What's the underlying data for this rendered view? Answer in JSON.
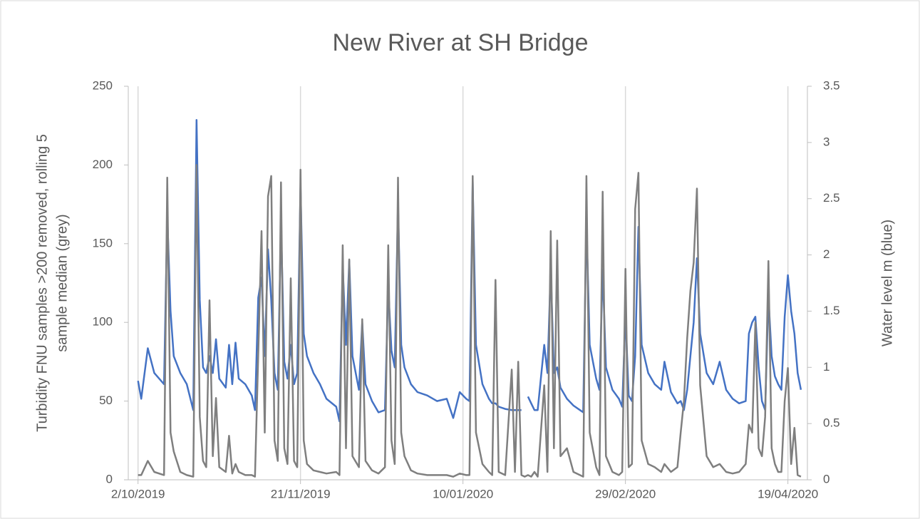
{
  "chart_data": {
    "type": "line",
    "title": "New River at SH Bridge",
    "ylabel": [
      "Turbidity FNU samples >200 removed, rolling 5",
      "sample median  (grey)"
    ],
    "y2label": "Water level m (blue)",
    "xlim": [
      "2019-09-29",
      "2020-04-25"
    ],
    "xticks": [
      {
        "value": "2019-10-02",
        "label": "2/10/2019"
      },
      {
        "value": "2019-11-21",
        "label": "21/11/2019"
      },
      {
        "value": "2020-01-10",
        "label": "10/01/2020"
      },
      {
        "value": "2020-02-29",
        "label": "29/02/2020"
      },
      {
        "value": "2020-04-19",
        "label": "19/04/2020"
      }
    ],
    "ylim": [
      0,
      250
    ],
    "yticks": [
      0,
      50,
      100,
      150,
      200,
      250
    ],
    "y2lim": [
      0,
      3.5
    ],
    "y2ticks": [
      0,
      0.5,
      1,
      1.5,
      2,
      2.5,
      3,
      3.5
    ],
    "grid": "x",
    "x": [
      "2019-10-02",
      "2019-10-03",
      "2019-10-05",
      "2019-10-07",
      "2019-10-10",
      "2019-10-11",
      "2019-10-12",
      "2019-10-13",
      "2019-10-15",
      "2019-10-17",
      "2019-10-19",
      "2019-10-20",
      "2019-10-21",
      "2019-10-22",
      "2019-10-23",
      "2019-10-24",
      "2019-10-25",
      "2019-10-26",
      "2019-10-27",
      "2019-10-29",
      "2019-10-30",
      "2019-10-31",
      "2019-11-01",
      "2019-11-02",
      "2019-11-04",
      "2019-11-06",
      "2019-11-07",
      "2019-11-08",
      "2019-11-09",
      "2019-11-10",
      "2019-11-11",
      "2019-11-12",
      "2019-11-13",
      "2019-11-14",
      "2019-11-15",
      "2019-11-16",
      "2019-11-17",
      "2019-11-18",
      "2019-11-19",
      "2019-11-20",
      "2019-11-21",
      "2019-11-22",
      "2019-11-23",
      "2019-11-25",
      "2019-11-27",
      "2019-11-29",
      "2019-12-02",
      "2019-12-03",
      "2019-12-04",
      "2019-12-05",
      "2019-12-06",
      "2019-12-07",
      "2019-12-09",
      "2019-12-10",
      "2019-12-11",
      "2019-12-13",
      "2019-12-15",
      "2019-12-17",
      "2019-12-18",
      "2019-12-19",
      "2019-12-20",
      "2019-12-21",
      "2019-12-22",
      "2019-12-23",
      "2019-12-25",
      "2019-12-27",
      "2019-12-30",
      "2020-01-02",
      "2020-01-05",
      "2020-01-07",
      "2020-01-09",
      "2020-01-11",
      "2020-01-12",
      "2020-01-13",
      "2020-01-14",
      "2020-01-16",
      "2020-01-18",
      "2020-01-19",
      "2020-01-20",
      "2020-01-21",
      "2020-01-23",
      "2020-01-25",
      "2020-01-26",
      "2020-01-27",
      "2020-01-28",
      "2020-01-29",
      "2020-01-30",
      "2020-01-31",
      "2020-02-01",
      "2020-02-02",
      "2020-02-04",
      "2020-02-05",
      "2020-02-06",
      "2020-02-07",
      "2020-02-08",
      "2020-02-09",
      "2020-02-11",
      "2020-02-13",
      "2020-02-15",
      "2020-02-16",
      "2020-02-17",
      "2020-02-18",
      "2020-02-20",
      "2020-02-21",
      "2020-02-22",
      "2020-02-23",
      "2020-02-25",
      "2020-02-27",
      "2020-02-28",
      "2020-02-29",
      "2020-03-01",
      "2020-03-02",
      "2020-03-03",
      "2020-03-04",
      "2020-03-05",
      "2020-03-07",
      "2020-03-09",
      "2020-03-11",
      "2020-03-12",
      "2020-03-14",
      "2020-03-16",
      "2020-03-17",
      "2020-03-18",
      "2020-03-19",
      "2020-03-20",
      "2020-03-21",
      "2020-03-22",
      "2020-03-23",
      "2020-03-25",
      "2020-03-27",
      "2020-03-29",
      "2020-03-31",
      "2020-04-02",
      "2020-04-04",
      "2020-04-06",
      "2020-04-07",
      "2020-04-08",
      "2020-04-09",
      "2020-04-10",
      "2020-04-11",
      "2020-04-12",
      "2020-04-13",
      "2020-04-14",
      "2020-04-15",
      "2020-04-16",
      "2020-04-17",
      "2020-04-18",
      "2020-04-19",
      "2020-04-20",
      "2020-04-21",
      "2020-04-22",
      "2020-04-23"
    ],
    "series": [
      {
        "name": "Water level m (blue)",
        "color": "#4472c4",
        "axis": "y2",
        "values": [
          0.88,
          0.72,
          1.17,
          0.95,
          0.85,
          2.35,
          1.5,
          1.1,
          0.95,
          0.85,
          0.62,
          3.2,
          1.6,
          1.0,
          0.95,
          1.1,
          0.95,
          1.25,
          0.9,
          0.82,
          1.2,
          0.85,
          1.22,
          0.9,
          0.85,
          0.75,
          0.62,
          1.62,
          1.8,
          1.1,
          2.05,
          1.6,
          0.95,
          0.8,
          2.3,
          1.05,
          0.9,
          1.2,
          0.85,
          0.95,
          2.6,
          1.3,
          1.1,
          0.95,
          0.85,
          0.72,
          0.65,
          0.52,
          1.9,
          1.2,
          1.95,
          1.1,
          0.8,
          1.4,
          0.85,
          0.7,
          0.6,
          0.62,
          1.72,
          1.15,
          1.0,
          2.45,
          1.2,
          1.0,
          0.85,
          0.78,
          0.75,
          0.7,
          0.72,
          0.55,
          0.78,
          0.72,
          0.7,
          2.65,
          1.2,
          0.85,
          0.72,
          0.68,
          0.68,
          0.65,
          0.63,
          0.62,
          0.62,
          0.62,
          0.62,
          null,
          0.74,
          0.68,
          0.62,
          0.62,
          1.2,
          0.95,
          1.87,
          0.95,
          1.0,
          0.82,
          0.72,
          0.66,
          0.62,
          0.6,
          2.3,
          1.2,
          0.9,
          0.8,
          1.87,
          1.0,
          0.8,
          0.72,
          0.65,
          1.47,
          0.75,
          0.7,
          1.1,
          2.25,
          1.2,
          0.95,
          0.85,
          0.8,
          1.05,
          0.78,
          0.68,
          0.7,
          0.62,
          0.8,
          1.1,
          1.4,
          1.97,
          1.3,
          0.95,
          0.85,
          1.05,
          0.8,
          0.72,
          0.68,
          0.7,
          1.3,
          1.4,
          1.45,
          1.0,
          0.7,
          0.62,
          1.63,
          1.1,
          0.92,
          0.85,
          0.8,
          1.45,
          1.82,
          1.5,
          1.3,
          0.95,
          0.8
        ]
      },
      {
        "name": "Turbidity FNU samples >200 removed, rolling 5 sample median  (grey)",
        "color": "#7f7f7f",
        "axis": "y",
        "values": [
          3,
          3,
          12,
          5,
          3,
          192,
          30,
          18,
          5,
          3,
          2,
          200,
          40,
          12,
          8,
          114,
          15,
          52,
          8,
          5,
          28,
          4,
          10,
          5,
          3,
          3,
          2,
          80,
          158,
          30,
          180,
          193,
          25,
          12,
          189,
          20,
          10,
          128,
          12,
          8,
          197,
          25,
          10,
          6,
          5,
          4,
          5,
          3,
          149,
          20,
          140,
          15,
          8,
          102,
          12,
          6,
          4,
          8,
          149,
          25,
          10,
          192,
          30,
          15,
          6,
          4,
          3,
          3,
          3,
          2,
          4,
          3,
          3,
          193,
          30,
          10,
          5,
          3,
          127,
          5,
          3,
          70,
          5,
          75,
          3,
          2,
          3,
          2,
          5,
          2,
          60,
          5,
          158,
          20,
          152,
          15,
          20,
          5,
          3,
          2,
          193,
          30,
          8,
          3,
          183,
          15,
          5,
          3,
          5,
          134,
          8,
          10,
          172,
          195,
          25,
          10,
          8,
          5,
          10,
          5,
          8,
          30,
          50,
          90,
          120,
          138,
          185,
          60,
          15,
          8,
          10,
          5,
          4,
          5,
          10,
          35,
          30,
          100,
          20,
          15,
          40,
          139,
          20,
          10,
          5,
          5,
          50,
          71,
          10,
          33,
          3,
          2
        ]
      }
    ]
  }
}
